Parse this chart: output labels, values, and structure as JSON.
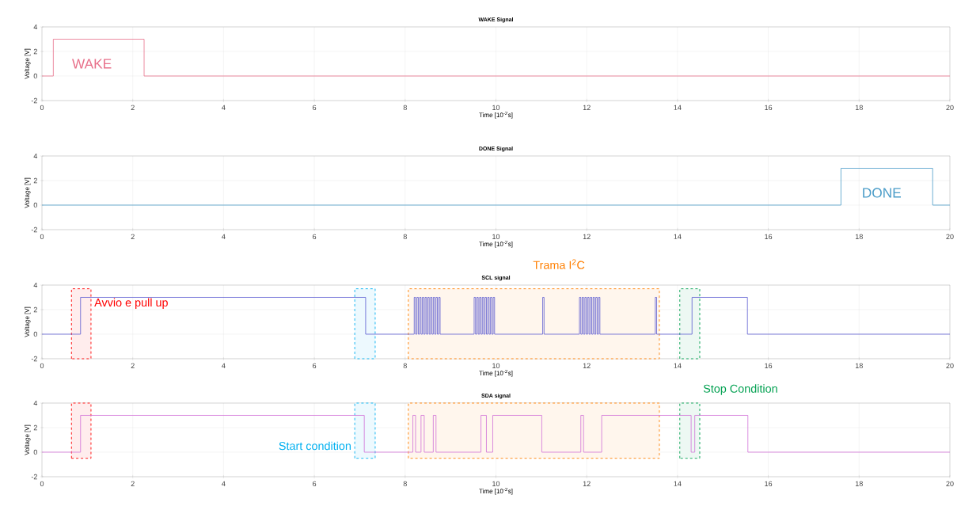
{
  "chart_data": [
    {
      "type": "step",
      "title": "WAKE Signal",
      "xlabel": "Time [10$^{-2}$s]",
      "ylabel": "Voltage [V]",
      "xlim": [
        0,
        20
      ],
      "ylim": [
        -2,
        4
      ],
      "xticks": [
        0,
        2,
        4,
        6,
        8,
        10,
        12,
        14,
        16,
        18,
        20
      ],
      "yticks": [
        -2,
        0,
        2,
        4
      ],
      "grid": true,
      "series": [
        {
          "color": "#e8708a",
          "x": [
            0,
            0.25,
            2.25,
            20
          ],
          "values": [
            0,
            3,
            0,
            0
          ]
        }
      ],
      "annotations": [
        "WAKE"
      ]
    },
    {
      "type": "step",
      "title": "DONE Signal",
      "xlabel": "Time [10$^{-2}$s]",
      "ylabel": "Voltage [V]",
      "xlim": [
        0,
        20
      ],
      "ylim": [
        -2,
        4
      ],
      "xticks": [
        0,
        2,
        4,
        6,
        8,
        10,
        12,
        14,
        16,
        18,
        20
      ],
      "yticks": [
        -2,
        0,
        2,
        4
      ],
      "grid": true,
      "series": [
        {
          "color": "#4a9cc8",
          "x": [
            0,
            17.6,
            19.62,
            20
          ],
          "values": [
            0,
            3,
            0,
            0
          ]
        }
      ],
      "annotations": [
        "DONE"
      ]
    },
    {
      "type": "step",
      "title": "SCL signal",
      "xlabel": "Time [10$^{-2}$s]",
      "ylabel": "Voltage [V]",
      "xlim": [
        0,
        20
      ],
      "ylim": [
        -2,
        4
      ],
      "xticks": [
        0,
        2,
        4,
        6,
        8,
        10,
        12,
        14,
        16,
        18,
        20
      ],
      "yticks": [
        -2,
        0,
        2,
        4
      ],
      "grid": true,
      "series": [
        {
          "color": "#5a5ad0",
          "x": [
            0,
            0.85,
            7.13,
            8.2,
            8.23,
            8.26,
            8.29,
            8.32,
            8.35,
            8.38,
            8.41,
            8.44,
            8.47,
            8.5,
            8.53,
            8.56,
            8.59,
            8.62,
            8.65,
            8.68,
            8.71,
            8.74,
            8.77,
            9.52,
            9.55,
            9.58,
            9.61,
            9.64,
            9.67,
            9.7,
            9.73,
            9.76,
            9.79,
            9.82,
            9.85,
            9.88,
            9.91,
            9.94,
            9.97,
            11.03,
            11.06,
            11.84,
            11.87,
            11.9,
            11.93,
            11.96,
            11.99,
            12.02,
            12.05,
            12.08,
            12.11,
            12.14,
            12.17,
            12.2,
            12.23,
            12.26,
            12.29,
            13.51,
            13.54,
            14.32,
            15.54,
            20
          ],
          "values": [
            0,
            3,
            0,
            3,
            0,
            3,
            0,
            3,
            0,
            3,
            0,
            3,
            0,
            3,
            0,
            3,
            0,
            3,
            0,
            3,
            0,
            3,
            0,
            3,
            0,
            3,
            0,
            3,
            0,
            3,
            0,
            3,
            0,
            3,
            0,
            3,
            0,
            3,
            0,
            3,
            0,
            3,
            0,
            3,
            0,
            3,
            0,
            3,
            0,
            3,
            0,
            3,
            0,
            3,
            0,
            3,
            0,
            3,
            0,
            3,
            0,
            0
          ]
        }
      ],
      "bands": [
        {
          "axis": "x",
          "from": 0.65,
          "to": 1.08,
          "color": "#ff0000",
          "label": "Avvio e pull up"
        },
        {
          "axis": "x",
          "from": 6.89,
          "to": 7.34,
          "color": "#00b0f0"
        },
        {
          "axis": "x",
          "from": 8.07,
          "to": 13.6,
          "color": "#ff7f00",
          "label": "Trama I$^{2}$C"
        },
        {
          "axis": "x",
          "from": 14.05,
          "to": 14.49,
          "color": "#00a050"
        }
      ]
    },
    {
      "type": "step",
      "title": "SDA signal",
      "xlabel": "Time [10$^{-2}$s]",
      "ylabel": "Voltage [V]",
      "xlim": [
        0,
        20
      ],
      "ylim": [
        -2,
        4
      ],
      "xticks": [
        0,
        2,
        4,
        6,
        8,
        10,
        12,
        14,
        16,
        18,
        20
      ],
      "yticks": [
        -2,
        0,
        2,
        4
      ],
      "grid": true,
      "series": [
        {
          "color": "#d070d8",
          "x": [
            0,
            0.85,
            7.1,
            8.17,
            8.23,
            8.35,
            8.42,
            8.62,
            8.68,
            9.67,
            9.79,
            9.93,
            11.01,
            11.87,
            11.93,
            12.33,
            14.3,
            14.38,
            15.55,
            20
          ],
          "values": [
            0,
            3,
            0,
            3,
            0,
            3,
            0,
            3,
            0,
            3,
            0,
            3,
            0,
            3,
            0,
            3,
            0,
            3,
            0,
            0
          ]
        }
      ],
      "bands": [
        {
          "axis": "x",
          "from": 0.65,
          "to": 1.08,
          "color": "#ff0000"
        },
        {
          "axis": "x",
          "from": 6.89,
          "to": 7.34,
          "color": "#00b0f0",
          "label": "Start condition"
        },
        {
          "axis": "x",
          "from": 8.07,
          "to": 13.6,
          "color": "#ff7f00"
        },
        {
          "axis": "x",
          "from": 14.05,
          "to": 14.49,
          "color": "#00a050",
          "label": "Stop Condition"
        }
      ]
    }
  ]
}
